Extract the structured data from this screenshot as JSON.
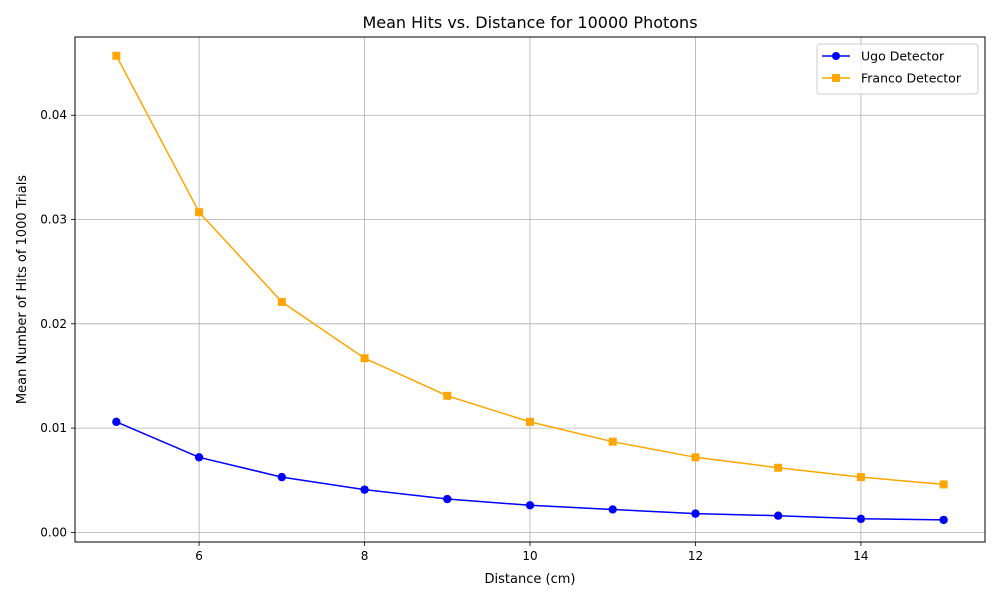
{
  "chart_data": {
    "type": "line",
    "title": "Mean Hits vs. Distance for 10000 Photons",
    "xlabel": "Distance (cm)",
    "ylabel": "Mean Number of Hits of 1000 Trials",
    "xlim": [
      4.5,
      15.5
    ],
    "ylim": [
      -0.00092,
      0.0475
    ],
    "x": [
      5,
      6,
      7,
      8,
      9,
      10,
      11,
      12,
      13,
      14,
      15
    ],
    "xticks": [
      6,
      8,
      10,
      12,
      14
    ],
    "xtick_labels": [
      "6",
      "8",
      "10",
      "12",
      "14"
    ],
    "yticks": [
      0,
      0.01,
      0.02,
      0.03,
      0.04
    ],
    "ytick_labels": [
      "0.00",
      "0.01",
      "0.02",
      "0.03",
      "0.04"
    ],
    "grid": true,
    "legend_position": "top-right",
    "series": [
      {
        "name": "Ugo Detector",
        "color": "#0000ff",
        "marker": "circle",
        "values": [
          0.0106,
          0.0072,
          0.0053,
          0.0041,
          0.0032,
          0.0026,
          0.0022,
          0.0018,
          0.0016,
          0.0013,
          0.0012
        ]
      },
      {
        "name": "Franco Detector",
        "color": "#ffa500",
        "marker": "square",
        "values": [
          0.0457,
          0.0307,
          0.0221,
          0.0167,
          0.0131,
          0.0106,
          0.0087,
          0.0072,
          0.0062,
          0.0053,
          0.0046
        ]
      }
    ]
  }
}
